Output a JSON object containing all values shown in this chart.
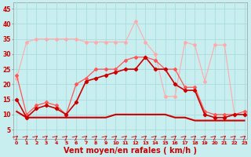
{
  "bg_color": "#c8eef0",
  "grid_color": "#aadddd",
  "xlabel": "Vent moyen/en rafales ( km/h )",
  "xlabel_color": "#cc0000",
  "xlabel_fontsize": 7,
  "xtick_color": "#cc0000",
  "ytick_color": "#cc0000",
  "ytick_labels": [
    5,
    10,
    15,
    20,
    25,
    30,
    35,
    40,
    45
  ],
  "xlim": [
    -0.3,
    23.3
  ],
  "ylim": [
    2,
    47
  ],
  "hours": [
    0,
    1,
    2,
    3,
    4,
    5,
    6,
    7,
    8,
    9,
    10,
    11,
    12,
    13,
    14,
    15,
    16,
    17,
    18,
    19,
    20,
    21,
    22,
    23
  ],
  "wind_min": [
    11,
    9,
    9,
    9,
    9,
    9,
    9,
    9,
    9,
    9,
    10,
    10,
    10,
    10,
    10,
    10,
    9,
    9,
    8,
    8,
    8,
    8,
    8,
    8
  ],
  "wind_avg": [
    15,
    9,
    12,
    13,
    12,
    10,
    14,
    21,
    22,
    23,
    24,
    25,
    25,
    29,
    25,
    25,
    20,
    18,
    18,
    10,
    9,
    9,
    10,
    10
  ],
  "wind_gust": [
    23,
    10,
    13,
    14,
    13,
    10,
    20,
    22,
    25,
    25,
    25,
    28,
    29,
    29,
    28,
    25,
    25,
    19,
    19,
    11,
    10,
    10,
    10,
    11
  ],
  "wind_max": [
    22,
    34,
    35,
    35,
    35,
    35,
    35,
    34,
    34,
    34,
    34,
    34,
    41,
    34,
    30,
    16,
    16,
    34,
    33,
    21,
    33,
    33,
    10,
    10
  ],
  "dir_y": 2.5,
  "line_min_color": "#cc0000",
  "line_avg_color": "#cc0000",
  "line_gust_color": "#ff5555",
  "line_max_color": "#ffaaaa",
  "dir_color": "#cc0000"
}
